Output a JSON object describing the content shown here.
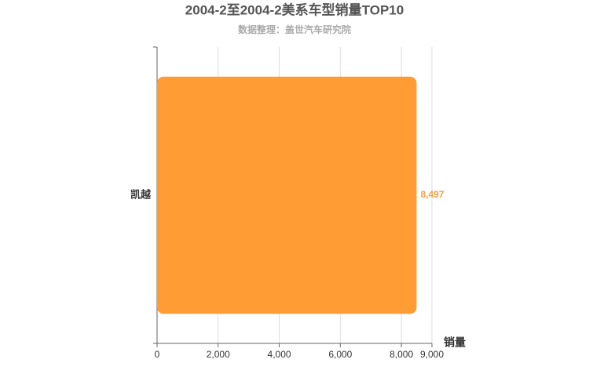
{
  "chart_data": {
    "type": "bar",
    "orientation": "horizontal",
    "title": "2004-2至2004-2美系车型销量TOP10",
    "subtitle": "数据整理：盖世汽车研究院",
    "x_label": "销量",
    "categories": [
      "凯越"
    ],
    "values": [
      8497
    ],
    "value_labels": [
      "8,497"
    ],
    "color": "#ff9c33",
    "label_color": "#f0a040",
    "xlim": [
      0,
      9000
    ],
    "xticks": [
      0,
      {
        "value": 2000,
        "label": "2,000"
      },
      {
        "value": 4000,
        "label": "4,000"
      },
      {
        "value": 6000,
        "label": "6,000"
      },
      {
        "value": 8000,
        "label": "8,000"
      },
      {
        "value": 9000,
        "label": "9,000"
      }
    ],
    "grid": true
  }
}
